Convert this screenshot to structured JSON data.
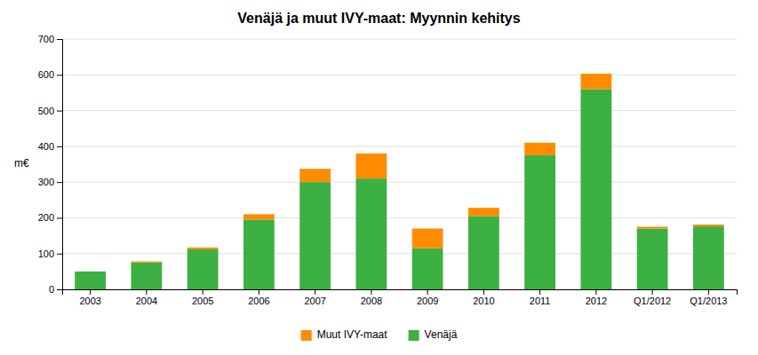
{
  "chart_data": {
    "type": "bar",
    "stacked": true,
    "title": "Venäjä ja muut IVY-maat:  Myynnin kehitys",
    "ylabel": "m€",
    "categories": [
      "2003",
      "2004",
      "2005",
      "2006",
      "2007",
      "2008",
      "2009",
      "2010",
      "2011",
      "2012",
      "Q1/2012",
      "Q1/2013"
    ],
    "series": [
      {
        "name": "Venäjä",
        "color": "#3CB043",
        "values": [
          50,
          75,
          112,
          195,
          300,
          310,
          115,
          205,
          375,
          560,
          170,
          176
        ]
      },
      {
        "name": "Muut IVY-maat",
        "color": "#FF8C00",
        "values": [
          0,
          3,
          5,
          15,
          37,
          70,
          55,
          23,
          35,
          43,
          5,
          5
        ]
      }
    ],
    "ylim": [
      0,
      700
    ],
    "yticks": [
      0,
      100,
      200,
      300,
      400,
      500,
      600,
      700
    ],
    "grid": true,
    "legend": "bottom"
  }
}
